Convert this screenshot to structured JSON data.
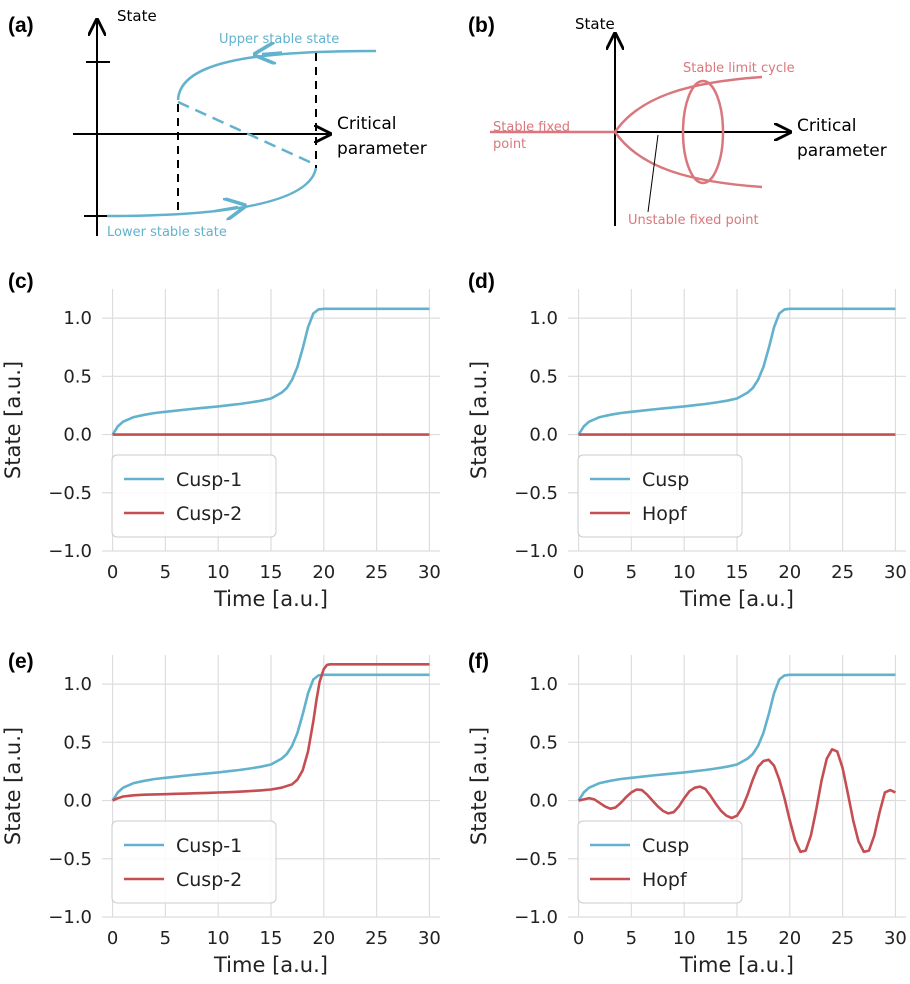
{
  "colors": {
    "cusp": "#62b2cd",
    "hopf": "#c44e52",
    "diagram_red": "#d9777c",
    "grid": "#dddddd"
  },
  "panel_labels": [
    "(a)",
    "(b)",
    "(c)",
    "(d)",
    "(e)",
    "(f)"
  ],
  "diagram_a": {
    "y_axis": "State",
    "x_axis_line1": "Critical",
    "x_axis_line2": "parameter",
    "upper": "Upper stable state",
    "lower": "Lower stable state"
  },
  "diagram_b": {
    "y_axis": "State",
    "x_axis_line1": "Critical",
    "x_axis_line2": "parameter",
    "limit_cycle": "Stable limit cycle",
    "stable_fixed_line1": "Stable fixed",
    "stable_fixed_line2": "point",
    "unstable_fixed": "Unstable fixed point"
  },
  "chart_data": [
    {
      "panel": "(c)",
      "type": "line",
      "xlabel": "Time [a.u.]",
      "ylabel": "State [a.u.]",
      "xlim": [
        -1,
        31
      ],
      "ylim": [
        -1.0,
        1.25
      ],
      "grid": true,
      "legend": "lower-left",
      "xticks": [
        0,
        5,
        10,
        15,
        20,
        25,
        30
      ],
      "yticks": [
        -1.0,
        -0.5,
        0.0,
        0.5,
        1.0
      ],
      "series": [
        {
          "name": "Cusp-1",
          "color": "#62b2cd",
          "x": [
            0,
            0.5,
            1,
            2,
            3,
            4,
            5,
            6,
            7,
            8,
            9,
            10,
            11,
            12,
            13,
            14,
            15,
            16,
            16.5,
            17,
            17.5,
            18,
            18.5,
            19,
            19.5,
            20,
            21,
            22,
            25,
            30
          ],
          "y": [
            0,
            0.07,
            0.11,
            0.15,
            0.17,
            0.185,
            0.195,
            0.205,
            0.215,
            0.225,
            0.233,
            0.242,
            0.252,
            0.262,
            0.275,
            0.29,
            0.31,
            0.36,
            0.4,
            0.47,
            0.58,
            0.74,
            0.92,
            1.04,
            1.075,
            1.08,
            1.08,
            1.08,
            1.08,
            1.08
          ]
        },
        {
          "name": "Cusp-2",
          "color": "#c44e52",
          "x": [
            0,
            30
          ],
          "y": [
            0,
            0
          ]
        }
      ]
    },
    {
      "panel": "(d)",
      "type": "line",
      "xlabel": "Time [a.u.]",
      "ylabel": "State [a.u.]",
      "xlim": [
        -1,
        31
      ],
      "ylim": [
        -1.0,
        1.25
      ],
      "grid": true,
      "legend": "lower-left",
      "xticks": [
        0,
        5,
        10,
        15,
        20,
        25,
        30
      ],
      "yticks": [
        -1.0,
        -0.5,
        0.0,
        0.5,
        1.0
      ],
      "series": [
        {
          "name": "Cusp",
          "color": "#62b2cd",
          "x": [
            0,
            0.5,
            1,
            2,
            3,
            4,
            5,
            6,
            7,
            8,
            9,
            10,
            11,
            12,
            13,
            14,
            15,
            16,
            16.5,
            17,
            17.5,
            18,
            18.5,
            19,
            19.5,
            20,
            21,
            22,
            25,
            30
          ],
          "y": [
            0,
            0.07,
            0.11,
            0.15,
            0.17,
            0.185,
            0.195,
            0.205,
            0.215,
            0.225,
            0.233,
            0.242,
            0.252,
            0.262,
            0.275,
            0.29,
            0.31,
            0.36,
            0.4,
            0.47,
            0.58,
            0.74,
            0.92,
            1.04,
            1.075,
            1.08,
            1.08,
            1.08,
            1.08,
            1.08
          ]
        },
        {
          "name": "Hopf",
          "color": "#c44e52",
          "x": [
            0,
            30
          ],
          "y": [
            0,
            0
          ]
        }
      ]
    },
    {
      "panel": "(e)",
      "type": "line",
      "xlabel": "Time [a.u.]",
      "ylabel": "State [a.u.]",
      "xlim": [
        -1,
        31
      ],
      "ylim": [
        -1.0,
        1.25
      ],
      "grid": true,
      "legend": "lower-left",
      "xticks": [
        0,
        5,
        10,
        15,
        20,
        25,
        30
      ],
      "yticks": [
        -1.0,
        -0.5,
        0.0,
        0.5,
        1.0
      ],
      "series": [
        {
          "name": "Cusp-1",
          "color": "#62b2cd",
          "x": [
            0,
            0.5,
            1,
            2,
            3,
            4,
            5,
            6,
            7,
            8,
            9,
            10,
            11,
            12,
            13,
            14,
            15,
            16,
            16.5,
            17,
            17.5,
            18,
            18.5,
            19,
            19.5,
            20,
            21,
            22,
            25,
            30
          ],
          "y": [
            0,
            0.07,
            0.11,
            0.15,
            0.17,
            0.185,
            0.195,
            0.205,
            0.215,
            0.225,
            0.233,
            0.242,
            0.252,
            0.262,
            0.275,
            0.29,
            0.31,
            0.36,
            0.4,
            0.47,
            0.58,
            0.74,
            0.92,
            1.04,
            1.075,
            1.08,
            1.08,
            1.08,
            1.08,
            1.08
          ]
        },
        {
          "name": "Cusp-2",
          "color": "#c44e52",
          "x": [
            0,
            0.5,
            1,
            2,
            3,
            4,
            5,
            6,
            7,
            8,
            9,
            10,
            11,
            12,
            13,
            14,
            15,
            16,
            17,
            17.5,
            18,
            18.5,
            19,
            19.3,
            19.6,
            20,
            20.3,
            20.6,
            21,
            22,
            25,
            30
          ],
          "y": [
            0,
            0.02,
            0.035,
            0.045,
            0.05,
            0.053,
            0.055,
            0.058,
            0.06,
            0.063,
            0.066,
            0.069,
            0.072,
            0.076,
            0.081,
            0.087,
            0.095,
            0.11,
            0.14,
            0.18,
            0.26,
            0.42,
            0.68,
            0.86,
            1.02,
            1.13,
            1.165,
            1.17,
            1.17,
            1.17,
            1.17,
            1.17
          ]
        }
      ]
    },
    {
      "panel": "(f)",
      "type": "line",
      "xlabel": "Time [a.u.]",
      "ylabel": "State [a.u.]",
      "xlim": [
        -1,
        31
      ],
      "ylim": [
        -1.0,
        1.25
      ],
      "grid": true,
      "legend": "lower-left",
      "xticks": [
        0,
        5,
        10,
        15,
        20,
        25,
        30
      ],
      "yticks": [
        -1.0,
        -0.5,
        0.0,
        0.5,
        1.0
      ],
      "series": [
        {
          "name": "Cusp",
          "color": "#62b2cd",
          "x": [
            0,
            0.5,
            1,
            2,
            3,
            4,
            5,
            6,
            7,
            8,
            9,
            10,
            11,
            12,
            13,
            14,
            15,
            16,
            16.5,
            17,
            17.5,
            18,
            18.5,
            19,
            19.5,
            20,
            21,
            22,
            25,
            30
          ],
          "y": [
            0,
            0.07,
            0.11,
            0.15,
            0.17,
            0.185,
            0.195,
            0.205,
            0.215,
            0.225,
            0.233,
            0.242,
            0.252,
            0.262,
            0.275,
            0.29,
            0.31,
            0.36,
            0.4,
            0.47,
            0.58,
            0.74,
            0.92,
            1.04,
            1.075,
            1.08,
            1.08,
            1.08,
            1.08,
            1.08
          ]
        },
        {
          "name": "Hopf",
          "color": "#c44e52",
          "x": [
            0,
            0.5,
            1,
            1.5,
            2,
            2.5,
            3,
            3.5,
            4,
            4.5,
            5,
            5.5,
            6,
            6.5,
            7,
            7.5,
            8,
            8.5,
            9,
            9.5,
            10,
            10.5,
            11,
            11.5,
            12,
            12.5,
            13,
            13.5,
            14,
            14.5,
            15,
            15.5,
            16,
            16.5,
            17,
            17.5,
            18,
            18.5,
            19,
            19.5,
            20,
            20.5,
            21,
            21.5,
            22,
            22.5,
            23,
            23.5,
            24,
            24.5,
            25,
            25.5,
            26,
            26.5,
            27,
            27.5,
            28,
            28.5,
            29,
            29.5,
            30
          ],
          "y": [
            0,
            0.01,
            0.02,
            0.01,
            -0.02,
            -0.05,
            -0.07,
            -0.06,
            -0.02,
            0.03,
            0.07,
            0.095,
            0.09,
            0.05,
            0,
            -0.05,
            -0.09,
            -0.11,
            -0.1,
            -0.05,
            0.02,
            0.08,
            0.11,
            0.12,
            0.1,
            0.04,
            -0.03,
            -0.09,
            -0.13,
            -0.15,
            -0.13,
            -0.06,
            0.05,
            0.18,
            0.29,
            0.34,
            0.35,
            0.3,
            0.18,
            0.02,
            -0.17,
            -0.34,
            -0.44,
            -0.43,
            -0.3,
            -0.08,
            0.17,
            0.36,
            0.44,
            0.42,
            0.28,
            0.06,
            -0.17,
            -0.35,
            -0.44,
            -0.43,
            -0.3,
            -0.1,
            0.07,
            0.09,
            0.07
          ]
        }
      ]
    }
  ]
}
